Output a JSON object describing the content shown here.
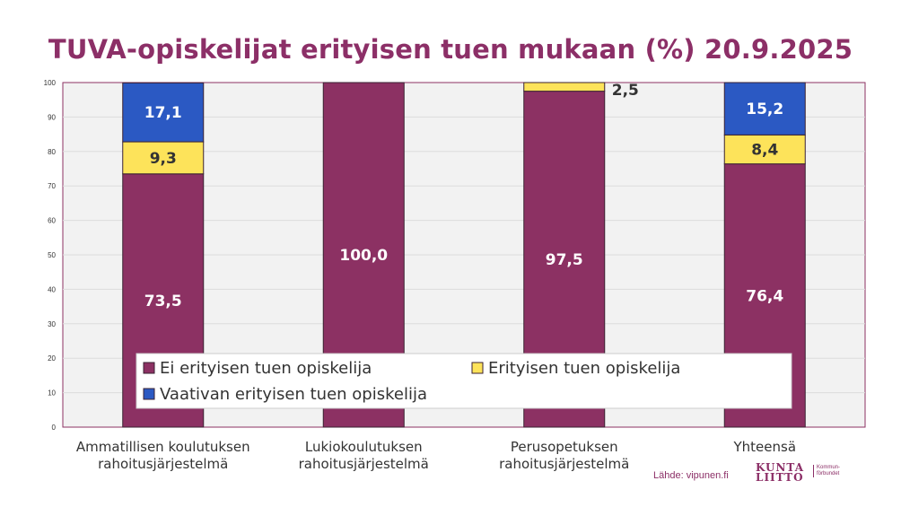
{
  "title": "TUVA-opiskelijat erityisen tuen mukaan (%) 20.9.2025",
  "source": "Lähde: vipunen.fi",
  "logo": {
    "line1": "KUNTA",
    "line2": "LIITTO",
    "sub1": "Kommun-",
    "sub2": "förbundet"
  },
  "chart_data": {
    "type": "bar",
    "stacked": true,
    "categories": [
      [
        "Ammatillisen koulutuksen",
        "rahoitusjärjestelmä"
      ],
      [
        "Lukiokoulutuksen",
        "rahoitusjärjestelmä"
      ],
      [
        "Perusopetuksen",
        "rahoitusjärjestelmä"
      ],
      [
        "Yhteensä"
      ]
    ],
    "series": [
      {
        "name": "Ei erityisen tuen opiskelija",
        "values": [
          73.5,
          100.0,
          97.5,
          76.4
        ],
        "labels": [
          "73,5",
          "100,0",
          "97,5",
          "76,4"
        ],
        "color": "#8c3163",
        "label_color": "#ffffff"
      },
      {
        "name": "Erityisen tuen opiskelija",
        "values": [
          9.3,
          0,
          2.5,
          8.4
        ],
        "labels": [
          "9,3",
          "",
          "2,5",
          "8,4"
        ],
        "color": "#fde35a",
        "label_color": "#333333"
      },
      {
        "name": "Vaativan erityisen tuen opiskelija",
        "values": [
          17.1,
          0,
          0,
          15.2
        ],
        "labels": [
          "17,1",
          "",
          "",
          "15,2"
        ],
        "color": "#2b59c3",
        "label_color": "#ffffff"
      }
    ],
    "y_ticks": [
      0,
      10,
      20,
      30,
      40,
      50,
      60,
      70,
      80,
      90,
      100
    ],
    "ylim": [
      0,
      100
    ],
    "grid": true,
    "legend": "bottom-inside"
  }
}
